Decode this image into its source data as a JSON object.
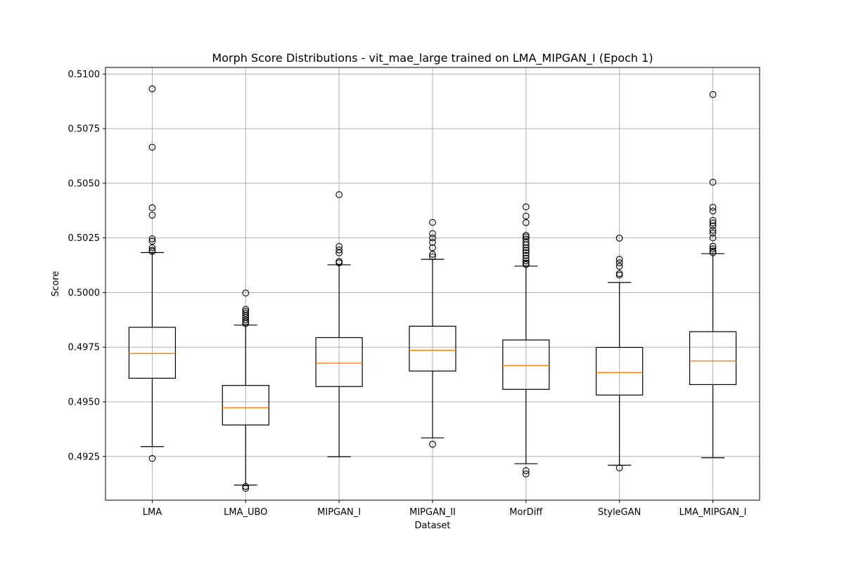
{
  "chart_data": {
    "type": "box",
    "title": "Morph Score Distributions - vit_mae_large trained on LMA_MIPGAN_I (Epoch 1)",
    "xlabel": "Dataset",
    "ylabel": "Score",
    "ylim": [
      0.4905,
      0.5103
    ],
    "yticks": [
      "0.4925",
      "0.4950",
      "0.4975",
      "0.5000",
      "0.5025",
      "0.5050",
      "0.5075",
      "0.5100"
    ],
    "grid": true,
    "colors": {
      "box": "#000000",
      "median": "#ff7f0e",
      "grid": "#b0b0b0"
    },
    "categories": [
      "LMA",
      "LMA_UBO",
      "MIPGAN_I",
      "MIPGAN_II",
      "MorDiff",
      "StyleGAN",
      "LMA_MIPGAN_I"
    ],
    "boxes": [
      {
        "whisker_low": 0.49295,
        "q1": 0.49608,
        "median": 0.49721,
        "q3": 0.49841,
        "whisker_high": 0.50183,
        "outliers": [
          0.50932,
          0.50665,
          0.50388,
          0.50354,
          0.50246,
          0.50235,
          0.50205,
          0.50194,
          0.50188,
          0.49241
        ]
      },
      {
        "whisker_low": 0.49119,
        "q1": 0.49394,
        "median": 0.49473,
        "q3": 0.49575,
        "whisker_high": 0.49851,
        "outliers": [
          0.49998,
          0.49923,
          0.49914,
          0.49905,
          0.49895,
          0.49886,
          0.49875,
          0.49866,
          0.49858,
          0.49113,
          0.49104
        ]
      },
      {
        "whisker_low": 0.49249,
        "q1": 0.4957,
        "median": 0.49677,
        "q3": 0.49794,
        "whisker_high": 0.50127,
        "outliers": [
          0.50448,
          0.50211,
          0.50195,
          0.50182,
          0.50142,
          0.50136
        ]
      },
      {
        "whisker_low": 0.49335,
        "q1": 0.49641,
        "median": 0.49736,
        "q3": 0.49846,
        "whisker_high": 0.50152,
        "outliers": [
          0.50321,
          0.5027,
          0.5025,
          0.5023,
          0.50205,
          0.50175,
          0.50164,
          0.49306
        ]
      },
      {
        "whisker_low": 0.49217,
        "q1": 0.49557,
        "median": 0.49666,
        "q3": 0.49783,
        "whisker_high": 0.50121,
        "outliers": [
          0.50392,
          0.5035,
          0.5032,
          0.50262,
          0.50255,
          0.50245,
          0.5023,
          0.50218,
          0.50205,
          0.50193,
          0.50182,
          0.5017,
          0.50157,
          0.50145,
          0.50135,
          0.50128,
          0.49185,
          0.4917
        ]
      },
      {
        "whisker_low": 0.4921,
        "q1": 0.49531,
        "median": 0.49634,
        "q3": 0.49749,
        "whisker_high": 0.50046,
        "outliers": [
          0.50249,
          0.50152,
          0.50136,
          0.5012,
          0.50087,
          0.5008,
          0.49198
        ]
      },
      {
        "whisker_low": 0.49244,
        "q1": 0.49579,
        "median": 0.49687,
        "q3": 0.49821,
        "whisker_high": 0.50178,
        "outliers": [
          0.50906,
          0.50505,
          0.5039,
          0.50373,
          0.5033,
          0.50318,
          0.50305,
          0.50285,
          0.50272,
          0.5025,
          0.50212,
          0.502,
          0.5019,
          0.50182
        ]
      }
    ]
  }
}
